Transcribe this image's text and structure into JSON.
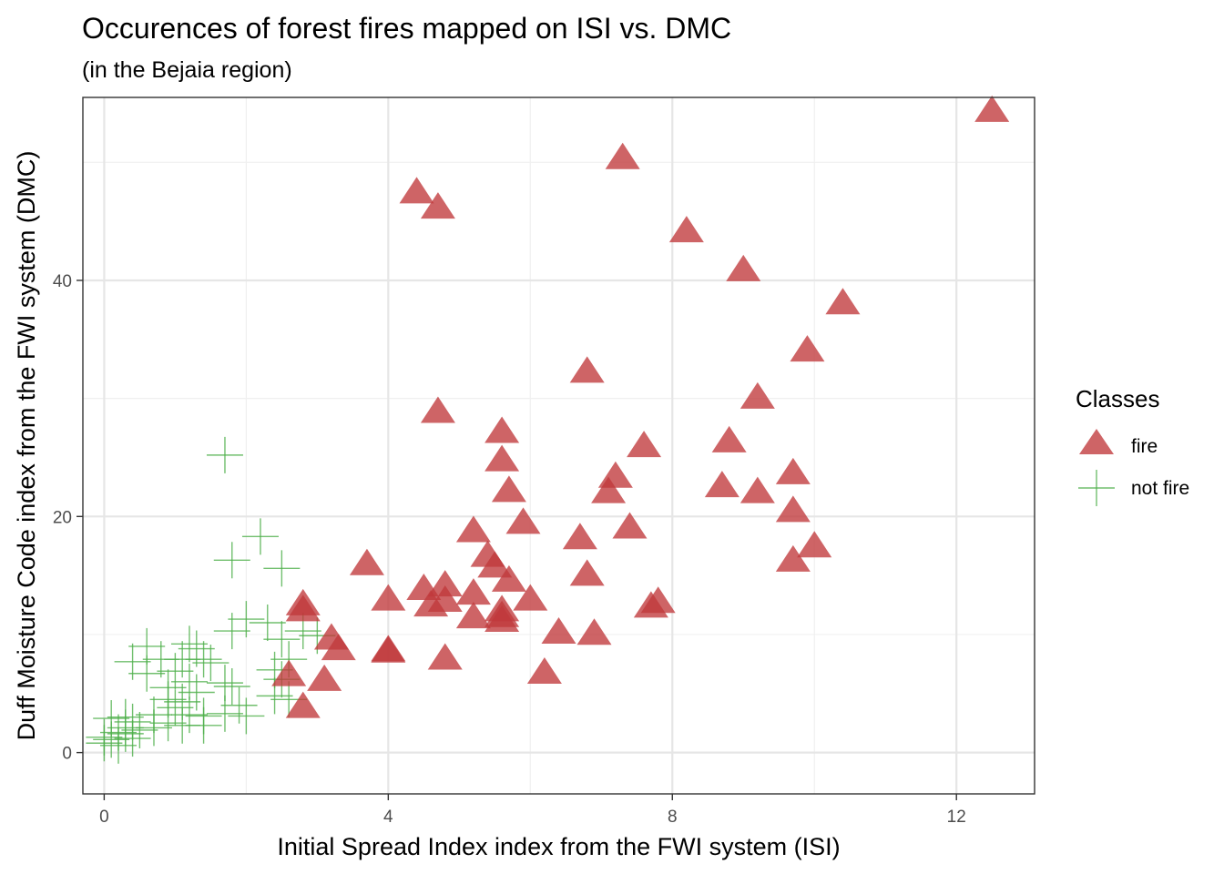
{
  "chart_data": {
    "type": "scatter",
    "title": "Occurences of forest fires mapped on ISI vs. DMC",
    "subtitle": "(in the Bejaia region)",
    "xlabel": "Initial Spread Index index from the FWI system (ISI)",
    "ylabel": "Duff Moisture Code index from the FWI system (DMC)",
    "xlim": [
      -0.3,
      13.1
    ],
    "ylim": [
      -3.5,
      55.5
    ],
    "x_ticks": [
      0,
      4,
      8,
      12
    ],
    "x_tick_labels": [
      "0",
      "4",
      "8",
      "12"
    ],
    "y_ticks": [
      0,
      20,
      40
    ],
    "y_tick_labels": [
      "0",
      "20",
      "40"
    ],
    "x_minor_ticks": [
      2,
      6,
      10
    ],
    "y_minor_ticks": [
      10,
      30,
      50
    ],
    "grid": true,
    "legend": {
      "title": "Classes",
      "placement": "right",
      "entries": [
        "fire",
        "not fire"
      ]
    },
    "series": [
      {
        "name": "fire",
        "marker": "triangle",
        "color": "#C0393B",
        "points": [
          [
            12.5,
            54.2
          ],
          [
            7.3,
            50.2
          ],
          [
            4.4,
            47.3
          ],
          [
            4.7,
            46.0
          ],
          [
            8.2,
            44.0
          ],
          [
            9.0,
            40.7
          ],
          [
            10.4,
            37.9
          ],
          [
            9.9,
            33.9
          ],
          [
            6.8,
            32.1
          ],
          [
            9.2,
            29.9
          ],
          [
            4.7,
            28.7
          ],
          [
            5.6,
            27.0
          ],
          [
            8.8,
            26.2
          ],
          [
            7.6,
            25.8
          ],
          [
            5.6,
            24.6
          ],
          [
            9.7,
            23.5
          ],
          [
            7.2,
            23.2
          ],
          [
            8.7,
            22.4
          ],
          [
            5.7,
            22.0
          ],
          [
            9.2,
            21.9
          ],
          [
            7.1,
            21.9
          ],
          [
            9.7,
            20.3
          ],
          [
            5.9,
            19.3
          ],
          [
            5.2,
            18.6
          ],
          [
            7.4,
            18.9
          ],
          [
            6.7,
            18.0
          ],
          [
            10.0,
            17.3
          ],
          [
            9.7,
            16.1
          ],
          [
            3.7,
            15.8
          ],
          [
            5.4,
            16.5
          ],
          [
            5.5,
            15.6
          ],
          [
            6.8,
            14.9
          ],
          [
            5.7,
            14.4
          ],
          [
            4.8,
            14.0
          ],
          [
            4.5,
            13.7
          ],
          [
            5.2,
            13.3
          ],
          [
            4.0,
            12.8
          ],
          [
            6.0,
            12.8
          ],
          [
            4.8,
            12.7
          ],
          [
            2.8,
            12.4
          ],
          [
            7.8,
            12.6
          ],
          [
            4.6,
            12.3
          ],
          [
            7.7,
            12.2
          ],
          [
            2.8,
            11.9
          ],
          [
            5.6,
            11.9
          ],
          [
            5.6,
            11.4
          ],
          [
            5.2,
            11.3
          ],
          [
            5.6,
            11.0
          ],
          [
            6.4,
            10.0
          ],
          [
            6.9,
            9.9
          ],
          [
            3.2,
            9.5
          ],
          [
            3.3,
            8.6
          ],
          [
            4.0,
            8.5
          ],
          [
            4.0,
            8.4
          ],
          [
            4.8,
            7.8
          ],
          [
            6.2,
            6.6
          ],
          [
            2.6,
            6.4
          ],
          [
            3.1,
            6.0
          ],
          [
            2.8,
            3.7
          ]
        ]
      },
      {
        "name": "not fire",
        "marker": "plus",
        "color": "#4DAF4A",
        "points": [
          [
            1.7,
            25.2
          ],
          [
            2.2,
            18.3
          ],
          [
            1.8,
            16.3
          ],
          [
            2.5,
            15.6
          ],
          [
            2.0,
            11.3
          ],
          [
            2.3,
            11.0
          ],
          [
            1.8,
            10.3
          ],
          [
            2.5,
            9.6
          ],
          [
            2.8,
            10.3
          ],
          [
            3.0,
            9.9
          ],
          [
            0.6,
            9.0
          ],
          [
            0.4,
            7.7
          ],
          [
            0.8,
            7.9
          ],
          [
            0.6,
            6.7
          ],
          [
            1.2,
            9.2
          ],
          [
            1.3,
            8.8
          ],
          [
            1.4,
            7.9
          ],
          [
            1.1,
            7.9
          ],
          [
            1.5,
            7.6
          ],
          [
            1.0,
            6.9
          ],
          [
            2.4,
            7.0
          ],
          [
            2.6,
            7.9
          ],
          [
            2.5,
            6.2
          ],
          [
            1.2,
            6.0
          ],
          [
            1.7,
            5.9
          ],
          [
            1.8,
            5.6
          ],
          [
            0.9,
            5.5
          ],
          [
            1.3,
            5.1
          ],
          [
            0.9,
            4.5
          ],
          [
            2.4,
            4.8
          ],
          [
            2.6,
            4.5
          ],
          [
            1.1,
            4.3
          ],
          [
            1.9,
            4.0
          ],
          [
            1.7,
            3.3
          ],
          [
            2.0,
            3.1
          ],
          [
            1.0,
            3.8
          ],
          [
            1.2,
            3.2
          ],
          [
            1.4,
            3.1
          ],
          [
            0.7,
            3.2
          ],
          [
            0.3,
            3.0
          ],
          [
            0.1,
            2.9
          ],
          [
            0.4,
            2.6
          ],
          [
            0.9,
            2.5
          ],
          [
            1.1,
            2.3
          ],
          [
            1.4,
            2.3
          ],
          [
            0.7,
            2.1
          ],
          [
            0.5,
            1.9
          ],
          [
            0.3,
            2.1
          ],
          [
            0.0,
            1.3
          ],
          [
            0.1,
            1.1
          ],
          [
            0.2,
            1.7
          ],
          [
            0.3,
            1.6
          ],
          [
            0.4,
            1.2
          ],
          [
            0.0,
            0.8
          ],
          [
            0.2,
            0.6
          ]
        ]
      }
    ]
  }
}
